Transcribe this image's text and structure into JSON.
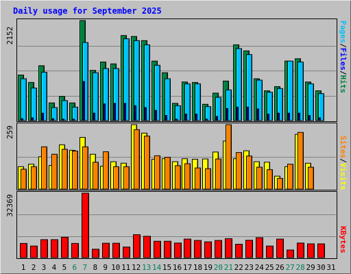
{
  "chart_data": [
    {
      "type": "bar",
      "title": "Daily usage for September 2025",
      "y_max_label": "2152",
      "ylim": [
        0,
        2152
      ],
      "legend_parts": [
        "Pages",
        "/",
        "Files",
        "/",
        "Hits"
      ],
      "categories": [
        "1",
        "2",
        "3",
        "4",
        "5",
        "6",
        "7",
        "8",
        "9",
        "10",
        "11",
        "12",
        "13",
        "14",
        "15",
        "16",
        "17",
        "18",
        "19",
        "20",
        "21",
        "22",
        "23",
        "24",
        "25",
        "26",
        "27",
        "28",
        "29",
        "30",
        "31"
      ],
      "series": [
        {
          "name": "Hits",
          "color": "#008040",
          "values": [
            980,
            820,
            1180,
            380,
            520,
            380,
            2152,
            1080,
            1260,
            1220,
            1830,
            1810,
            1720,
            1280,
            1030,
            370,
            830,
            820,
            350,
            590,
            850,
            1630,
            1500,
            900,
            640,
            730,
            1280,
            1330,
            830,
            640,
            0
          ]
        },
        {
          "name": "Files",
          "color": "#00c0ff",
          "values": [
            900,
            700,
            1040,
            280,
            430,
            290,
            1680,
            1030,
            1120,
            1120,
            1760,
            1720,
            1630,
            1190,
            900,
            320,
            790,
            790,
            300,
            500,
            660,
            1550,
            1420,
            870,
            610,
            690,
            1280,
            1260,
            790,
            580,
            0
          ]
        },
        {
          "name": "Pages",
          "color": "#0000ff",
          "values": [
            40,
            60,
            160,
            40,
            30,
            30,
            840,
            160,
            360,
            370,
            370,
            320,
            280,
            220,
            110,
            30,
            140,
            140,
            30,
            90,
            260,
            290,
            290,
            250,
            140,
            160,
            160,
            160,
            110,
            60,
            0
          ]
        }
      ]
    },
    {
      "type": "bar",
      "y_max_label": "259",
      "ylim": [
        0,
        259
      ],
      "legend_parts": [
        "Sites",
        "/",
        "Visits"
      ],
      "categories": [
        "1",
        "2",
        "3",
        "4",
        "5",
        "6",
        "7",
        "8",
        "9",
        "10",
        "11",
        "12",
        "13",
        "14",
        "15",
        "16",
        "17",
        "18",
        "19",
        "20",
        "21",
        "22",
        "23",
        "24",
        "25",
        "26",
        "27",
        "28",
        "29",
        "30",
        "31"
      ],
      "series": [
        {
          "name": "Visits",
          "color": "#ffff00",
          "values": [
            90,
            100,
            130,
            95,
            178,
            156,
            208,
            140,
            92,
            110,
            104,
            259,
            225,
            120,
            122,
            110,
            122,
            120,
            121,
            149,
            193,
            122,
            154,
            110,
            108,
            52,
            90,
            220,
            104,
            0,
            0
          ]
        },
        {
          "name": "Sites",
          "color": "#ff8000",
          "values": [
            80,
            90,
            170,
            140,
            160,
            153,
            170,
            108,
            150,
            90,
            90,
            239,
            213,
            134,
            128,
            94,
            102,
            85,
            82,
            121,
            259,
            147,
            133,
            88,
            78,
            43,
            100,
            228,
            88,
            0,
            0
          ]
        }
      ]
    },
    {
      "type": "bar",
      "y_max_label": "32369",
      "ylim": [
        0,
        32369
      ],
      "legend_parts": [
        "KBytes"
      ],
      "categories": [
        "1",
        "2",
        "3",
        "4",
        "5",
        "6",
        "7",
        "8",
        "9",
        "10",
        "11",
        "12",
        "13",
        "14",
        "15",
        "16",
        "17",
        "18",
        "19",
        "20",
        "21",
        "22",
        "23",
        "24",
        "25",
        "26",
        "27",
        "28",
        "29",
        "30",
        "31"
      ],
      "series": [
        {
          "name": "KBytes",
          "color": "#ff0000",
          "values": [
            7100,
            5800,
            9000,
            9000,
            10200,
            7100,
            32369,
            4200,
            7200,
            7200,
            5300,
            11500,
            10700,
            8200,
            8200,
            7300,
            9300,
            8600,
            7900,
            8600,
            9500,
            6700,
            8700,
            10000,
            5800,
            9300,
            3800,
            7300,
            6900,
            6900,
            0
          ]
        }
      ]
    }
  ],
  "x_axis": {
    "day_labels": [
      "1",
      "2",
      "3",
      "4",
      "5",
      "6",
      "7",
      "8",
      "9",
      "10",
      "11",
      "12",
      "13",
      "14",
      "15",
      "16",
      "17",
      "18",
      "19",
      "20",
      "21",
      "22",
      "23",
      "24",
      "25",
      "26",
      "27",
      "28",
      "29",
      "30",
      "31"
    ],
    "weekend_days": [
      "6",
      "7",
      "13",
      "14",
      "20",
      "21",
      "27",
      "28"
    ],
    "weekday_color": "#000000",
    "weekend_color": "#00805c"
  },
  "colors": {
    "background": "#c0c0c0",
    "frame": "#a0a0a0",
    "title": "#0000ff",
    "axis_text": "#000000",
    "gridline": "#808080"
  }
}
